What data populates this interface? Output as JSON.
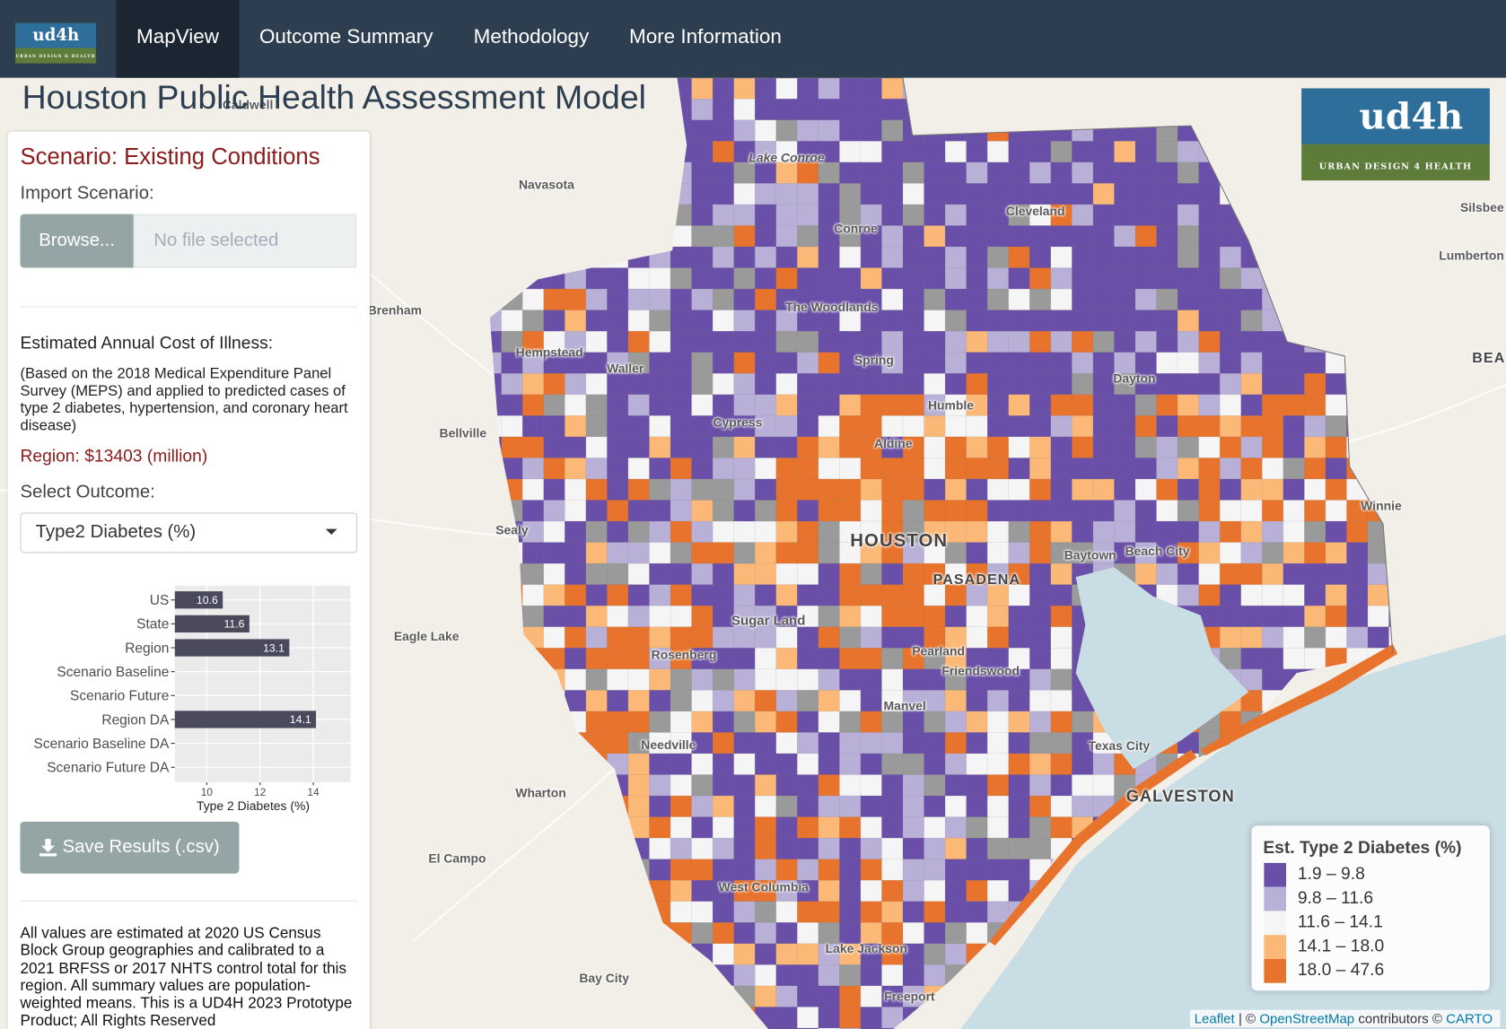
{
  "nav": {
    "logo": {
      "text": "ud4h",
      "tagline": "URBAN DESIGN & HEALTH"
    },
    "items": [
      "MapView",
      "Outcome Summary",
      "Methodology",
      "More Information"
    ]
  },
  "header": {
    "title": "Houston Public Health Assessment Model"
  },
  "panel": {
    "scenario": "Scenario: Existing Conditions",
    "import_label": "Import Scenario:",
    "browse": "Browse...",
    "no_file": "No file selected",
    "cost_heading": "Estimated Annual Cost of Illness:",
    "cost_note": "(Based on the 2018 Medical Expenditure Panel Survey (MEPS) and applied to predicted cases of type 2 diabetes, hypertension, and coronary heart disease)",
    "region_cost": "Region: $13403 (million)",
    "outcome_label": "Select Outcome:",
    "outcome": "Type2 Diabetes (%)",
    "save": "Save Results (.csv)",
    "footer": "All values are estimated at 2020 US Census Block Group geographies and calibrated to a 2021 BRFSS or 2017 NHTS control total for this region. All summary values are population-weighted means. This is a UD4H 2023 Prototype Product; All Rights Reserved"
  },
  "chart_data": {
    "type": "bar",
    "orientation": "horizontal",
    "categories": [
      "US",
      "State",
      "Region",
      "Scenario Baseline",
      "Scenario Future",
      "Region DA",
      "Scenario Baseline DA",
      "Scenario Future DA"
    ],
    "values": [
      10.6,
      11.6,
      13.1,
      null,
      null,
      14.1,
      null,
      null
    ],
    "color": "#4a4a5c",
    "xlim": [
      8.8,
      15.4
    ],
    "xticks": [
      10,
      12,
      14
    ],
    "x_label": "Type 2 Diabetes (%)",
    "grid": true
  },
  "legend": {
    "title": "Est. Type 2 Diabetes (%)",
    "items": [
      {
        "label": "1.9 – 9.8",
        "color": "#6a4fa8"
      },
      {
        "label": "9.8 – 11.6",
        "color": "#b9b0d8"
      },
      {
        "label": "11.6 – 14.1",
        "color": "#f5f5f5"
      },
      {
        "label": "14.1 – 18.0",
        "color": "#fbb877"
      },
      {
        "label": "18.0 – 47.6",
        "color": "#e8732c"
      }
    ]
  },
  "logo": {
    "text": "ud4h",
    "tagline": "URBAN DESIGN 4 HEALTH"
  },
  "map": {
    "labels": [
      "Caldwell",
      "Lake Conroe",
      "Navasota",
      "Conroe",
      "Cleveland",
      "Silsbee",
      "Lumberton",
      "Brenham",
      "The Woodlands",
      "Hempstead",
      "Waller",
      "Spring",
      "Dayton",
      "BEA",
      "Humble",
      "Cypress",
      "Bellville",
      "Aldine",
      "Winnie",
      "Sealy",
      "HOUSTON",
      "Baytown",
      "Beach City",
      "PASADENA",
      "Sugar Land",
      "Eagle Lake",
      "Rosenberg",
      "Pearland",
      "Friendswood",
      "Manvel",
      "Needville",
      "Texas City",
      "Wharton",
      "GALVESTON",
      "El Campo",
      "West Columbia",
      "Lake Jackson",
      "Bay City",
      "Freeport"
    ],
    "attribution": [
      "Leaflet",
      "| ©",
      "OpenStreetMap",
      "contributors ©",
      "CARTO"
    ]
  }
}
